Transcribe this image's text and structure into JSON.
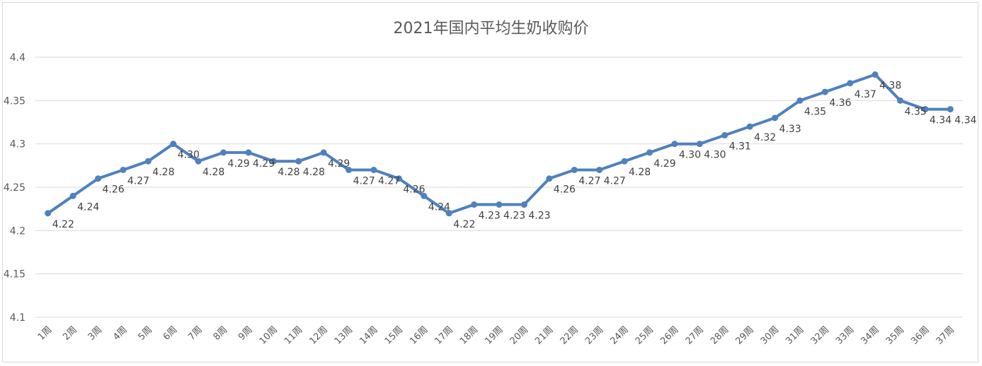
{
  "chart_data": {
    "type": "line",
    "title": "2021年国内平均生奶收购价",
    "xlabel": "",
    "ylabel": "",
    "ylim": [
      4.1,
      4.4
    ],
    "yticks": [
      "4.1",
      "4.15",
      "4.2",
      "4.25",
      "4.3",
      "4.35",
      "4.4"
    ],
    "grid": true,
    "legend": "none",
    "categories": [
      "1周",
      "2周",
      "3周",
      "4周",
      "5周",
      "6周",
      "7周",
      "8周",
      "9周",
      "10周",
      "11周",
      "12周",
      "13周",
      "14周",
      "15周",
      "16周",
      "17周",
      "18周",
      "19周",
      "20周",
      "21周",
      "22周",
      "23周",
      "24周",
      "25周",
      "26周",
      "27周",
      "28周",
      "29周",
      "30周",
      "31周",
      "32周",
      "33周",
      "34周",
      "35周",
      "36周",
      "37周"
    ],
    "values": [
      4.22,
      4.24,
      4.26,
      4.27,
      4.28,
      4.3,
      4.28,
      4.29,
      4.29,
      4.28,
      4.28,
      4.29,
      4.27,
      4.27,
      4.26,
      4.24,
      4.22,
      4.23,
      4.23,
      4.23,
      4.26,
      4.27,
      4.27,
      4.28,
      4.29,
      4.3,
      4.3,
      4.31,
      4.32,
      4.33,
      4.35,
      4.36,
      4.37,
      4.38,
      4.35,
      4.34,
      4.34
    ],
    "data_labels": [
      "4.22",
      "4.24",
      "4.26",
      "4.27",
      "4.28",
      "4.30",
      "4.28",
      "4.29",
      "4.29",
      "4.28",
      "4.28",
      "4.29",
      "4.27",
      "4.27",
      "4.26",
      "4.24",
      "4.22",
      "4.23",
      "4.23",
      "4.23",
      "4.26",
      "4.27",
      "4.27",
      "4.28",
      "4.29",
      "4.30",
      "4.30",
      "4.31",
      "4.32",
      "4.33",
      "4.35",
      "4.36",
      "4.37",
      "4.38",
      "4.35",
      "4.34",
      "4.34"
    ],
    "colors": {
      "line": "#4f81bd",
      "grid": "#d9d9d9",
      "text": "#595959"
    }
  }
}
